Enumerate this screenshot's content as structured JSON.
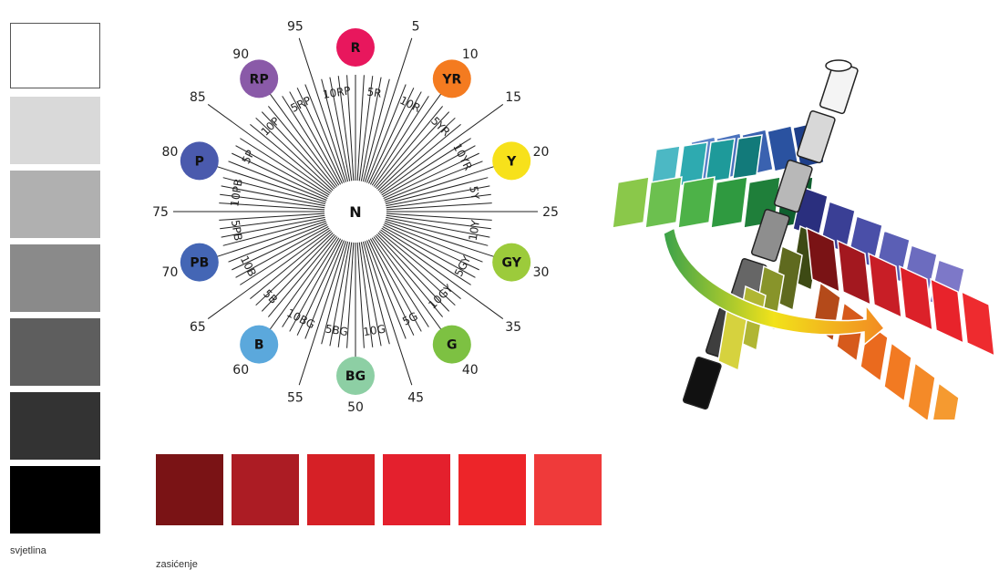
{
  "value_scale": {
    "caption": "svjetlina",
    "swatches": [
      "#ffffff",
      "#d9d9d9",
      "#b0b0b0",
      "#8a8a8a",
      "#5e5e5e",
      "#333333",
      "#000000"
    ]
  },
  "chroma_scale": {
    "caption": "zasićenje",
    "swatches": [
      "#7a1315",
      "#ac1c24",
      "#d62026",
      "#e4202d",
      "#ed2529",
      "#ef3a3a"
    ]
  },
  "hue_wheel": {
    "center_label": "N",
    "degree_labels": [
      "5",
      "10",
      "15",
      "20",
      "25",
      "30",
      "35",
      "40",
      "45",
      "50",
      "55",
      "60",
      "65",
      "70",
      "75",
      "80",
      "85",
      "90",
      "95"
    ],
    "ring_labels": [
      "5R",
      "10R",
      "5YR",
      "10YR",
      "5Y",
      "10Y",
      "5GY",
      "10GY",
      "5G",
      "10G",
      "5BG",
      "10BG",
      "5B",
      "10B",
      "5PB",
      "10PB",
      "5P",
      "10P",
      "5RP",
      "10RP"
    ],
    "hues": [
      {
        "label": "R",
        "color": "#e8175d"
      },
      {
        "label": "YR",
        "color": "#f47b20"
      },
      {
        "label": "Y",
        "color": "#f7e11b"
      },
      {
        "label": "GY",
        "color": "#9ccb3b"
      },
      {
        "label": "G",
        "color": "#7dc142"
      },
      {
        "label": "BG",
        "color": "#8dcfa4"
      },
      {
        "label": "B",
        "color": "#5ba8dc"
      },
      {
        "label": "PB",
        "color": "#4466b5"
      },
      {
        "label": "P",
        "color": "#4a5aad"
      },
      {
        "label": "RP",
        "color": "#8a5aa8"
      }
    ]
  },
  "solid": {
    "pole_colors": [
      "#f4f4f4",
      "#d8d8d8",
      "#b8b8b8",
      "#8e8e8e",
      "#666666",
      "#3e3e3e",
      "#111111"
    ],
    "arms": [
      {
        "name": "red",
        "colors": [
          "#7a1315",
          "#a3181f",
          "#c81e26",
          "#dc2129",
          "#e8232b",
          "#ee2b2f"
        ]
      },
      {
        "name": "orange",
        "colors": [
          "#b44a1a",
          "#d65a1c",
          "#ea6a1e",
          "#f27a22",
          "#f48a28",
          "#f59a30"
        ]
      },
      {
        "name": "purple-blue",
        "colors": [
          "#2a2f7e",
          "#3a3f95",
          "#4a4fa8",
          "#5b5fb5",
          "#6c6cbf",
          "#7d78c8"
        ]
      },
      {
        "name": "blue",
        "colors": [
          "#1e3f8a",
          "#2a52a0",
          "#3a62b0",
          "#4a72bd",
          "#5a82c8"
        ]
      },
      {
        "name": "green",
        "colors": [
          "#0f5f2f",
          "#1f7f3a",
          "#2f9a40",
          "#4db248",
          "#6cc04f",
          "#8ac84a"
        ]
      },
      {
        "name": "cyan",
        "colors": [
          "#127a7a",
          "#1e9a9a",
          "#2eaab0",
          "#4cb8c4"
        ]
      },
      {
        "name": "yellow-green",
        "colors": [
          "#3d4a14",
          "#5f6a1f",
          "#88942a",
          "#b0b634",
          "#d6d23e"
        ]
      }
    ]
  }
}
